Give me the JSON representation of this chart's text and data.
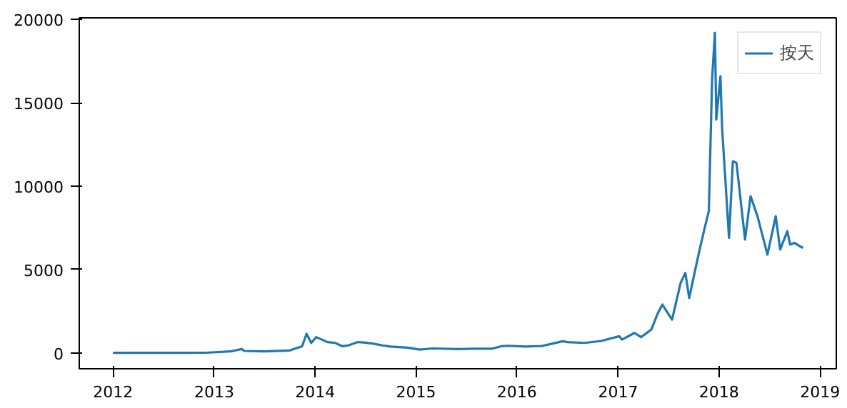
{
  "chart_data": {
    "type": "line",
    "legend": "top right",
    "grid": false,
    "xlim": [
      "2011-09-01",
      "2019-03-01"
    ],
    "ylim": [
      -950,
      20100
    ],
    "xticks": [
      "2012",
      "2013",
      "2014",
      "2015",
      "2016",
      "2017",
      "2018",
      "2019"
    ],
    "yticks": [
      0,
      5000,
      10000,
      15000,
      20000
    ],
    "series": [
      {
        "name": "按天",
        "color": "#1f77b4",
        "x": [
          "2012-01-01",
          "2012-06-01",
          "2012-12-01",
          "2013-03-01",
          "2013-04-10",
          "2013-04-20",
          "2013-07-01",
          "2013-10-01",
          "2013-11-15",
          "2013-12-01",
          "2013-12-18",
          "2014-01-05",
          "2014-02-15",
          "2014-03-15",
          "2014-04-10",
          "2014-05-01",
          "2014-06-05",
          "2014-07-01",
          "2014-08-01",
          "2014-09-01",
          "2014-10-01",
          "2014-12-01",
          "2015-01-15",
          "2015-03-01",
          "2015-06-01",
          "2015-08-01",
          "2015-10-01",
          "2015-11-05",
          "2015-12-01",
          "2016-02-01",
          "2016-04-01",
          "2016-06-15",
          "2016-07-01",
          "2016-09-01",
          "2016-11-01",
          "2017-01-05",
          "2017-01-15",
          "2017-03-01",
          "2017-03-25",
          "2017-05-01",
          "2017-05-25",
          "2017-06-10",
          "2017-07-15",
          "2017-08-15",
          "2017-09-01",
          "2017-09-15",
          "2017-10-20",
          "2017-11-10",
          "2017-11-25",
          "2017-12-07",
          "2017-12-17",
          "2017-12-22",
          "2018-01-06",
          "2018-01-12",
          "2018-02-06",
          "2018-02-20",
          "2018-03-05",
          "2018-04-05",
          "2018-04-25",
          "2018-05-20",
          "2018-06-25",
          "2018-07-25",
          "2018-08-10",
          "2018-09-05",
          "2018-09-15",
          "2018-10-01",
          "2018-10-20",
          "2018-11-01"
        ],
        "values": [
          5,
          6,
          13,
          90,
          230,
          120,
          90,
          150,
          400,
          1150,
          600,
          950,
          650,
          600,
          400,
          450,
          650,
          620,
          550,
          450,
          380,
          320,
          200,
          270,
          230,
          250,
          250,
          400,
          430,
          380,
          420,
          700,
          650,
          600,
          720,
          1000,
          800,
          1200,
          950,
          1400,
          2400,
          2900,
          2000,
          4200,
          4800,
          3300,
          6000,
          7500,
          8500,
          16500,
          19200,
          14000,
          16600,
          13500,
          6900,
          11500,
          11400,
          6800,
          9400,
          8200,
          5900,
          8200,
          6200,
          7300,
          6500,
          6600,
          6400,
          6300
        ]
      }
    ]
  }
}
